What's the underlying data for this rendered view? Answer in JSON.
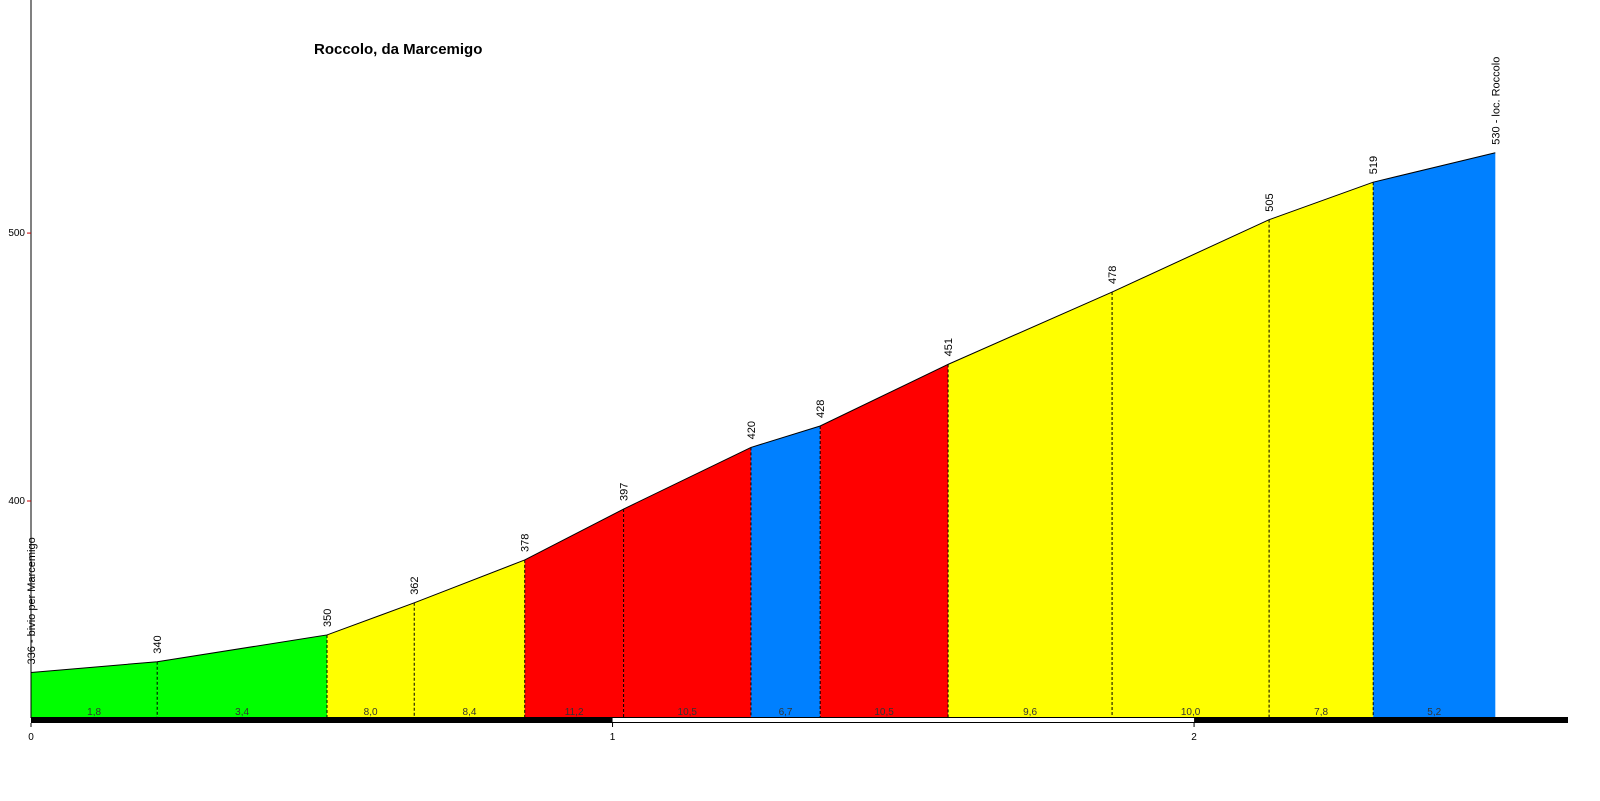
{
  "chart_data": {
    "type": "profile",
    "title": "Roccolo, da Marcemigo",
    "x": [
      0,
      0.217,
      0.509,
      0.659,
      0.849,
      1.019,
      1.238,
      1.357,
      1.577,
      1.859,
      2.129,
      2.308,
      2.518
    ],
    "series": [
      {
        "values": [
          336,
          340,
          350,
          362,
          378,
          397,
          420,
          428,
          451,
          478,
          505,
          519,
          530
        ],
        "value_labels": [
          "336 - bivio per Marcemigo",
          "340",
          "350",
          "362",
          "378",
          "397",
          "420",
          "428",
          "451",
          "478",
          "505",
          "519",
          "530 - loc. Roccolo"
        ],
        "color": "#000000"
      }
    ],
    "segments": {
      "values": [
        1.8,
        3.4,
        8.0,
        8.4,
        11.2,
        10.5,
        6.7,
        10.5,
        9.6,
        10.0,
        7.8,
        5.2
      ],
      "value_labels": [
        "1,8",
        "3,4",
        "8,0",
        "8,4",
        "11,2",
        "10,5",
        "6,7",
        "10,5",
        "9,6",
        "10,0",
        "7,8",
        "5,2"
      ],
      "colors": [
        "#00ff00",
        "#00ff00",
        "#ffff00",
        "#ffff00",
        "#ff0000",
        "#ff0000",
        "#0080ff",
        "#ff0000",
        "#ffff00",
        "#ffff00",
        "#ffff00",
        "#0080ff"
      ]
    },
    "xlim": [
      0,
      2.643
    ],
    "ylim": [
      319,
      587
    ],
    "xticks": [
      0,
      1,
      2
    ],
    "yticks": [
      400,
      500
    ]
  }
}
